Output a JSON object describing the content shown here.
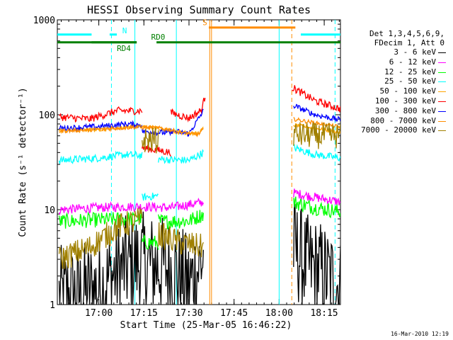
{
  "chart_data": {
    "type": "line",
    "title": "HESSI Observing Summary Count Rates",
    "xlabel": "Start Time (25-Mar-05 16:46:22)",
    "ylabel": "Count Rate (s⁻¹ detector⁻¹)",
    "yscale": "log",
    "ylim": [
      1,
      1000
    ],
    "xlim_min": [
      16.77,
      18.34
    ],
    "y_ticks": [
      "1",
      "10",
      "100",
      "1000"
    ],
    "x_ticks": [
      {
        "t": 17.0,
        "label": "17:00"
      },
      {
        "t": 17.25,
        "label": "17:15"
      },
      {
        "t": 17.5,
        "label": "17:30"
      },
      {
        "t": 17.75,
        "label": "17:45"
      },
      {
        "t": 18.0,
        "label": "18:00"
      },
      {
        "t": 18.25,
        "label": "18:15"
      }
    ],
    "legend_header": [
      "Det 1,3,4,5,6,9,",
      "FDecim 1, Att 0"
    ],
    "flags": [
      {
        "label": "N",
        "color": "#00ffff",
        "segments": [
          [
            16.77,
            16.96
          ],
          [
            17.06,
            17.1
          ],
          [
            18.12,
            18.34
          ]
        ],
        "level": 700
      },
      {
        "label": "S",
        "color": "#ff8c00",
        "segments": [
          [
            17.61,
            18.09
          ]
        ],
        "level": 830
      },
      {
        "label": "RD0",
        "color": "#008000",
        "segments": [
          [
            16.96,
            17.21
          ],
          [
            17.32,
            18.34
          ]
        ],
        "level": 580
      },
      {
        "label": "RD4",
        "color": "#008000",
        "segments": [
          [
            16.77,
            17.21
          ]
        ],
        "level": 580
      }
    ],
    "flag_labels": [
      {
        "text": "N",
        "color": "#00ffff",
        "t": 17.13,
        "level": 720
      },
      {
        "text": "S",
        "color": "#ff8c00",
        "t": 17.575,
        "level": 880
      },
      {
        "text": "RD0",
        "color": "#008000",
        "t": 17.29,
        "level": 620
      },
      {
        "text": "RD4",
        "color": "#008000",
        "t": 17.1,
        "level": 470
      }
    ],
    "vertical_lines": [
      {
        "t": 17.07,
        "color": "#00ffff",
        "style": "dashed"
      },
      {
        "t": 17.2,
        "color": "#00ffff",
        "style": "solid"
      },
      {
        "t": 17.43,
        "color": "#00ffff",
        "style": "solid"
      },
      {
        "t": 18.0,
        "color": "#00ffff",
        "style": "solid"
      },
      {
        "t": 18.31,
        "color": "#00ffff",
        "style": "dashed"
      },
      {
        "t": 17.615,
        "color": "#ff8c00",
        "style": "solid"
      },
      {
        "t": 17.625,
        "color": "#ff8c00",
        "style": "solid"
      },
      {
        "t": 18.07,
        "color": "#ff8c00",
        "style": "dashed"
      }
    ],
    "series": [
      {
        "name": "3 - 6 keV",
        "color": "#000000",
        "noise": 0.55,
        "segments": [
          [
            [
              16.78,
              1.2
            ],
            [
              16.9,
              1.3
            ],
            [
              17.0,
              1.5
            ],
            [
              17.1,
              2.2
            ],
            [
              17.2,
              2.8
            ],
            [
              17.3,
              2.6
            ],
            [
              17.4,
              2.4
            ],
            [
              17.5,
              1.6
            ],
            [
              17.58,
              3.0
            ]
          ],
          [
            [
              18.08,
              4.0
            ],
            [
              18.15,
              2.6
            ],
            [
              18.22,
              2.3
            ],
            [
              18.3,
              1.8
            ],
            [
              18.34,
              1.5
            ]
          ]
        ]
      },
      {
        "name": "6 - 12 keV",
        "color": "#ff00ff",
        "noise": 0.05,
        "segments": [
          [
            [
              16.78,
              10.0
            ],
            [
              17.0,
              10.5
            ],
            [
              17.2,
              10.8
            ],
            [
              17.4,
              10.5
            ],
            [
              17.58,
              12
            ]
          ],
          [
            [
              18.08,
              15.0
            ],
            [
              18.2,
              13.5
            ],
            [
              18.34,
              12.0
            ]
          ]
        ]
      },
      {
        "name": "12 - 25 keV",
        "color": "#00ff00",
        "noise": 0.08,
        "segments": [
          [
            [
              16.78,
              7.5
            ],
            [
              17.0,
              7.8
            ],
            [
              17.2,
              8.0
            ],
            [
              17.24,
              8.0
            ]
          ],
          [
            [
              17.24,
              4.5
            ],
            [
              17.33,
              4.5
            ]
          ],
          [
            [
              17.33,
              7.5
            ],
            [
              17.5,
              7.6
            ],
            [
              17.58,
              9
            ]
          ],
          [
            [
              18.08,
              12.0
            ],
            [
              18.2,
              10.5
            ],
            [
              18.34,
              9.5
            ]
          ]
        ]
      },
      {
        "name": "25 - 50 keV",
        "color": "#00ffff",
        "noise": 0.04,
        "segments": [
          [
            [
              16.78,
              33
            ],
            [
              17.0,
              35
            ],
            [
              17.15,
              38
            ],
            [
              17.24,
              37
            ]
          ],
          [
            [
              17.24,
              13.5
            ],
            [
              17.33,
              14
            ]
          ],
          [
            [
              17.33,
              34
            ],
            [
              17.5,
              33
            ],
            [
              17.58,
              40
            ]
          ],
          [
            [
              18.08,
              45
            ],
            [
              18.2,
              38
            ],
            [
              18.34,
              35
            ]
          ]
        ]
      },
      {
        "name": "50 - 100 keV",
        "color": "#ffa500",
        "noise": 0.02,
        "segments": [
          [
            [
              16.78,
              68
            ],
            [
              17.0,
              70
            ],
            [
              17.2,
              76
            ],
            [
              17.32,
              73
            ],
            [
              17.45,
              65
            ],
            [
              17.55,
              63
            ],
            [
              17.58,
              72
            ]
          ],
          [
            [
              18.08,
              78
            ],
            [
              18.2,
              72
            ],
            [
              18.34,
              65
            ]
          ]
        ]
      },
      {
        "name": "100 - 300 keV",
        "color": "#ff0000",
        "noise": 0.04,
        "segments": [
          [
            [
              16.78,
              95
            ],
            [
              16.95,
              90
            ],
            [
              17.1,
              110
            ],
            [
              17.24,
              110
            ]
          ],
          [
            [
              17.24,
              45
            ],
            [
              17.4,
              40
            ]
          ],
          [
            [
              17.4,
              105
            ],
            [
              17.5,
              92
            ],
            [
              17.57,
              112
            ],
            [
              17.59,
              160
            ]
          ],
          [
            [
              18.07,
              195
            ],
            [
              18.2,
              140
            ],
            [
              18.34,
              115
            ]
          ]
        ]
      },
      {
        "name": "300 - 800 keV",
        "color": "#0000ff",
        "noise": 0.03,
        "segments": [
          [
            [
              16.78,
              72
            ],
            [
              17.0,
              75
            ],
            [
              17.15,
              80
            ],
            [
              17.24,
              78
            ]
          ],
          [
            [
              17.24,
              67
            ],
            [
              17.4,
              64
            ]
          ],
          [
            [
              17.4,
              68
            ],
            [
              17.5,
              63
            ],
            [
              17.58,
              110
            ]
          ],
          [
            [
              18.08,
              125
            ],
            [
              18.2,
              100
            ],
            [
              18.34,
              88
            ]
          ]
        ]
      },
      {
        "name": "800 - 7000 keV",
        "color": "#ff8c00",
        "noise": 0.02,
        "segments": [
          [
            [
              16.78,
              67
            ],
            [
              17.0,
              70
            ],
            [
              17.2,
              74
            ],
            [
              17.35,
              72
            ],
            [
              17.45,
              66
            ],
            [
              17.55,
              62
            ],
            [
              17.58,
              70
            ]
          ],
          [
            [
              18.08,
              90
            ],
            [
              18.2,
              82
            ],
            [
              18.34,
              74
            ]
          ]
        ]
      },
      {
        "name": "7000 - 20000 keV",
        "color": "#a08000",
        "noise": 0.14,
        "segments": [
          [
            [
              16.78,
              3.0
            ],
            [
              16.95,
              4.0
            ],
            [
              17.1,
              6.5
            ],
            [
              17.24,
              8.0
            ]
          ],
          [
            [
              17.24,
              54
            ],
            [
              17.33,
              54
            ]
          ],
          [
            [
              17.33,
              5.5
            ],
            [
              17.45,
              4.5
            ],
            [
              17.58,
              4.0
            ]
          ],
          [
            [
              18.08,
              62
            ],
            [
              18.2,
              60
            ],
            [
              18.34,
              60
            ]
          ]
        ]
      }
    ]
  },
  "footer": {
    "timestamp": "16-Mar-2010 12:19"
  }
}
